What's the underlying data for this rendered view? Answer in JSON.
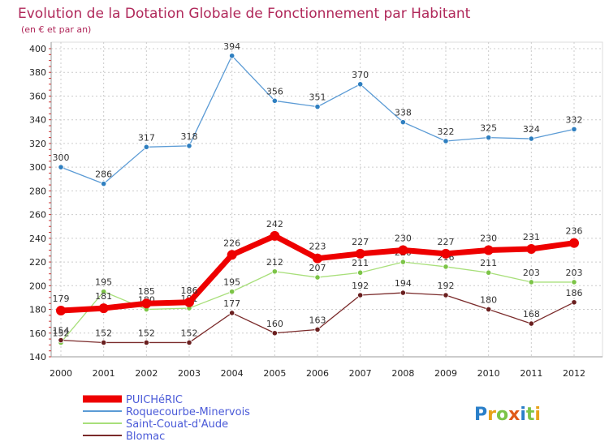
{
  "chart_data": {
    "type": "line",
    "title": "Evolution de la Dotation Globale de Fonctionnement par Habitant",
    "subtitle": "(en € et par an)",
    "xlabel": "",
    "ylabel": "",
    "x": [
      "2000",
      "2001",
      "2002",
      "2003",
      "2004",
      "2005",
      "2006",
      "2007",
      "2008",
      "2009",
      "2010",
      "2011",
      "2012"
    ],
    "ylim": [
      140,
      400
    ],
    "yticks": [
      140,
      160,
      180,
      200,
      220,
      240,
      260,
      280,
      300,
      320,
      340,
      360,
      380,
      400
    ],
    "grid": true,
    "legend_position": "bottom-left",
    "series": [
      {
        "name": "Roquecourbe-Minervois",
        "color": "#5b9bd5",
        "dot": "#2f7fc0",
        "values": [
          300,
          286,
          317,
          318,
          394,
          356,
          351,
          370,
          338,
          322,
          325,
          324,
          332
        ],
        "labels": [
          "300",
          "286",
          "317",
          "318",
          "394",
          "356",
          "351",
          "370",
          "338",
          "322",
          "325",
          "324",
          "332"
        ]
      },
      {
        "name": "Saint-Couat-d'Aude",
        "color": "#a8df7a",
        "dot": "#7cc447",
        "values": [
          152,
          195,
          180,
          181,
          195,
          212,
          207,
          211,
          220,
          216,
          211,
          203,
          203
        ],
        "labels": [
          "152",
          "195",
          "180",
          "181",
          "195",
          "212",
          "207",
          "211",
          "220",
          "216",
          "211",
          "203",
          "203"
        ]
      },
      {
        "name": "Blomac",
        "color": "#7a2a2a",
        "dot": "#6a1f1f",
        "values": [
          154,
          152,
          152,
          152,
          177,
          160,
          163,
          192,
          194,
          192,
          180,
          168,
          186
        ],
        "labels": [
          "154",
          "152",
          "152",
          "152",
          "177",
          "160",
          "163",
          "192",
          "194",
          "192",
          "180",
          "168",
          "186"
        ]
      },
      {
        "name": "PUICHéRIC",
        "color": "#ee0000",
        "dot": "#ee0000",
        "values": [
          179,
          181,
          185,
          186,
          226,
          242,
          223,
          227,
          230,
          227,
          230,
          231,
          236
        ],
        "labels": [
          "179",
          "181",
          "185",
          "186",
          "226",
          "242",
          "223",
          "227",
          "230",
          "227",
          "230",
          "231",
          "236"
        ]
      }
    ],
    "legend": [
      "PUICHéRIC",
      "Roquecourbe-Minervois",
      "Saint-Couat-d'Aude",
      "Blomac"
    ]
  },
  "logo": {
    "text": "Proxiti"
  }
}
